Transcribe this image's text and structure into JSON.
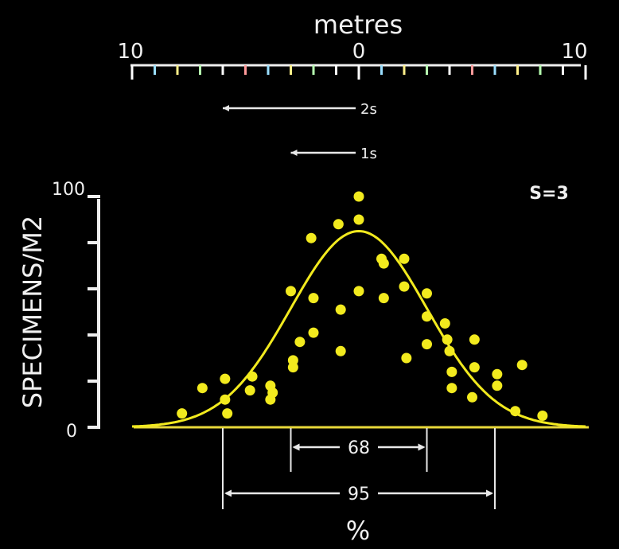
{
  "chart_data": {
    "type": "scatter",
    "xlabel": "metres",
    "x_ticks": [
      "10",
      "0",
      "10"
    ],
    "xlim": [
      -10,
      10
    ],
    "ylabel": "SPECIMENS/M2",
    "y_ticks": [
      "0",
      "100"
    ],
    "ylim": [
      0,
      100
    ],
    "annotation": "S=3",
    "sd_markers": [
      {
        "label": "2s",
        "from": -6,
        "to": 0
      },
      {
        "label": "1s",
        "from": -3,
        "to": 0
      }
    ],
    "intervals": [
      {
        "label": "68",
        "from": -3,
        "to": 3
      },
      {
        "label": "95",
        "from": -6,
        "to": 6
      }
    ],
    "interval_units": "%",
    "curve": {
      "type": "normal",
      "mean": 0,
      "sd": 3,
      "peak": 85,
      "color": "#f2ea1e"
    },
    "point_color": "#f2ea1e",
    "points": [
      {
        "x": -7.8,
        "y": 6
      },
      {
        "x": -6.9,
        "y": 17
      },
      {
        "x": -5.9,
        "y": 21
      },
      {
        "x": -5.9,
        "y": 12
      },
      {
        "x": -5.8,
        "y": 6
      },
      {
        "x": -4.7,
        "y": 22
      },
      {
        "x": -4.8,
        "y": 16
      },
      {
        "x": -3.9,
        "y": 18
      },
      {
        "x": -3.8,
        "y": 15
      },
      {
        "x": -3.9,
        "y": 12
      },
      {
        "x": -3.0,
        "y": 59
      },
      {
        "x": -2.9,
        "y": 29
      },
      {
        "x": -2.9,
        "y": 26
      },
      {
        "x": -2.6,
        "y": 37
      },
      {
        "x": -2.1,
        "y": 82
      },
      {
        "x": -2.0,
        "y": 56
      },
      {
        "x": -2.0,
        "y": 41
      },
      {
        "x": -0.9,
        "y": 88
      },
      {
        "x": -0.8,
        "y": 51
      },
      {
        "x": -0.8,
        "y": 33
      },
      {
        "x": 0.0,
        "y": 100
      },
      {
        "x": 0.0,
        "y": 90
      },
      {
        "x": 0.0,
        "y": 59
      },
      {
        "x": 1.0,
        "y": 73
      },
      {
        "x": 1.1,
        "y": 71
      },
      {
        "x": 1.1,
        "y": 56
      },
      {
        "x": 2.0,
        "y": 73
      },
      {
        "x": 2.0,
        "y": 61
      },
      {
        "x": 2.1,
        "y": 30
      },
      {
        "x": 3.0,
        "y": 58
      },
      {
        "x": 3.0,
        "y": 48
      },
      {
        "x": 3.0,
        "y": 36
      },
      {
        "x": 3.8,
        "y": 45
      },
      {
        "x": 3.9,
        "y": 38
      },
      {
        "x": 4.0,
        "y": 33
      },
      {
        "x": 4.1,
        "y": 24
      },
      {
        "x": 4.1,
        "y": 17
      },
      {
        "x": 5.1,
        "y": 38
      },
      {
        "x": 5.1,
        "y": 26
      },
      {
        "x": 5.0,
        "y": 13
      },
      {
        "x": 6.1,
        "y": 23
      },
      {
        "x": 6.1,
        "y": 18
      },
      {
        "x": 7.2,
        "y": 27
      },
      {
        "x": 6.9,
        "y": 7
      },
      {
        "x": 8.1,
        "y": 5
      }
    ]
  }
}
